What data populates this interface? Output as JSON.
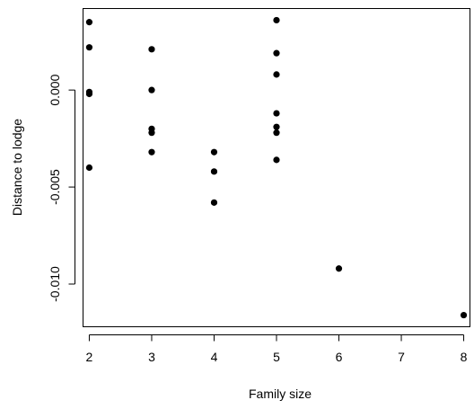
{
  "chart_data": {
    "type": "scatter",
    "title": "",
    "xlabel": "Family size",
    "ylabel": "Distance to lodge",
    "xlim": [
      1.9,
      8.1
    ],
    "ylim": [
      -0.0122,
      0.0042
    ],
    "grid": false,
    "legend": "none",
    "x_ticks": [
      2,
      3,
      4,
      5,
      6,
      7,
      8
    ],
    "x_tick_labels": [
      "2",
      "3",
      "4",
      "5",
      "6",
      "7",
      "8"
    ],
    "y_ticks": [
      0.0,
      -0.005,
      -0.01
    ],
    "y_tick_labels": [
      "0.000",
      "-0.005",
      "-0.010"
    ],
    "point_color": "#000000",
    "series": [
      {
        "points": [
          [
            2,
            0.0035
          ],
          [
            2,
            0.0022
          ],
          [
            2,
            -0.0001
          ],
          [
            2,
            -0.0002
          ],
          [
            2,
            -0.004
          ],
          [
            3,
            0.0021
          ],
          [
            3,
            0.0
          ],
          [
            3,
            -0.002
          ],
          [
            3,
            -0.0022
          ],
          [
            3,
            -0.0032
          ],
          [
            4,
            -0.0032
          ],
          [
            4,
            -0.0042
          ],
          [
            4,
            -0.0058
          ],
          [
            5,
            0.0036
          ],
          [
            5,
            0.0019
          ],
          [
            5,
            0.0008
          ],
          [
            5,
            -0.0012
          ],
          [
            5,
            -0.0019
          ],
          [
            5,
            -0.0022
          ],
          [
            5,
            -0.0036
          ],
          [
            6,
            -0.0092
          ],
          [
            8,
            -0.0116
          ]
        ]
      }
    ]
  }
}
